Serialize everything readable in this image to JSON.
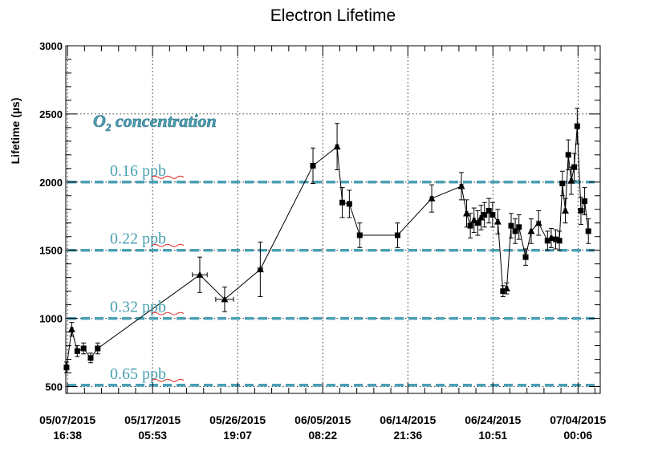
{
  "chart_data": {
    "type": "scatter",
    "title": "Electron Lifetime",
    "ylabel": "Lifetime (µs)",
    "xlabel": "",
    "ylim": [
      450,
      3000
    ],
    "xlim": [
      "05/07/2015 12:00",
      "07/06/2015 12:00"
    ],
    "x_axis": "time",
    "grid": true,
    "yticks": [
      500,
      1000,
      1500,
      2000,
      2500,
      3000
    ],
    "ytick_labels": [
      "500",
      "1000",
      "1500",
      "2000",
      "2500",
      "3000"
    ],
    "xticks": [
      {
        "t": "2015-05-07 16:38",
        "line1": "05/07/2015",
        "line2": "16:38"
      },
      {
        "t": "2015-05-17 05:53",
        "line1": "05/17/2015",
        "line2": "05:53"
      },
      {
        "t": "2015-05-26 19:07",
        "line1": "05/26/2015",
        "line2": "19:07"
      },
      {
        "t": "2015-06-05 08:22",
        "line1": "06/05/2015",
        "line2": "08:22"
      },
      {
        "t": "2015-06-14 21:36",
        "line1": "06/14/2015",
        "line2": "21:36"
      },
      {
        "t": "2015-06-24 10:51",
        "line1": "06/24/2015",
        "line2": "10:51"
      },
      {
        "t": "2015-07-04 00:06",
        "line1": "07/04/2015",
        "line2": "00:06"
      }
    ],
    "annotation": {
      "base": "O",
      "subscript": "2",
      "text": " concentration"
    },
    "reference_lines": [
      {
        "y": 2000,
        "label": "0.16 ppb"
      },
      {
        "y": 1500,
        "label": "0.22 ppb"
      },
      {
        "y": 1000,
        "label": "0.32 ppb"
      },
      {
        "y": 510,
        "label": "0.65 ppb"
      }
    ],
    "series": [
      {
        "points": [
          {
            "t": "2015-05-07 14:00",
            "y": 640,
            "yerr": 40,
            "xerr_h": 3,
            "m": "s"
          },
          {
            "t": "2015-05-08 04:00",
            "y": 920,
            "yerr": 50,
            "xerr_h": 3,
            "m": "t"
          },
          {
            "t": "2015-05-08 19:00",
            "y": 760,
            "yerr": 40,
            "xerr_h": 3,
            "m": "s"
          },
          {
            "t": "2015-05-09 12:00",
            "y": 780,
            "yerr": 40,
            "xerr_h": 3,
            "m": "s"
          },
          {
            "t": "2015-05-10 07:00",
            "y": 710,
            "yerr": 35,
            "xerr_h": 3,
            "m": "s"
          },
          {
            "t": "2015-05-11 02:00",
            "y": 780,
            "yerr": 40,
            "xerr_h": 3,
            "m": "s"
          },
          {
            "t": "2015-05-22 13:00",
            "y": 1320,
            "yerr": 130,
            "xerr_h": 20,
            "m": "t"
          },
          {
            "t": "2015-05-25 08:00",
            "y": 1140,
            "yerr": 90,
            "xerr_h": 24,
            "m": "t"
          },
          {
            "t": "2015-05-29 08:00",
            "y": 1360,
            "yerr": 200,
            "xerr_h": 6,
            "m": "t"
          },
          {
            "t": "2015-06-04 06:00",
            "y": 2120,
            "yerr": 130,
            "xerr_h": 6,
            "m": "s"
          },
          {
            "t": "2015-06-06 23:00",
            "y": 2260,
            "yerr": 170,
            "xerr_h": 4,
            "m": "t"
          },
          {
            "t": "2015-06-07 13:00",
            "y": 1850,
            "yerr": 110,
            "xerr_h": 4,
            "m": "s"
          },
          {
            "t": "2015-06-08 08:00",
            "y": 1840,
            "yerr": 100,
            "xerr_h": 4,
            "m": "s"
          },
          {
            "t": "2015-06-09 12:00",
            "y": 1610,
            "yerr": 90,
            "xerr_h": 4,
            "m": "s"
          },
          {
            "t": "2015-06-13 18:00",
            "y": 1610,
            "yerr": 90,
            "xerr_h": 4,
            "m": "s"
          },
          {
            "t": "2015-06-17 14:00",
            "y": 1880,
            "yerr": 100,
            "xerr_h": 4,
            "m": "t"
          },
          {
            "t": "2015-06-20 22:00",
            "y": 1970,
            "yerr": 100,
            "xerr_h": 4,
            "m": "t"
          },
          {
            "t": "2015-06-21 12:00",
            "y": 1770,
            "yerr": 100,
            "xerr_h": 3,
            "m": "t"
          },
          {
            "t": "2015-06-21 22:00",
            "y": 1680,
            "yerr": 90,
            "xerr_h": 3,
            "m": "s"
          },
          {
            "t": "2015-06-22 08:00",
            "y": 1720,
            "yerr": 90,
            "xerr_h": 3,
            "m": "t"
          },
          {
            "t": "2015-06-22 18:00",
            "y": 1700,
            "yerr": 90,
            "xerr_h": 3,
            "m": "s"
          },
          {
            "t": "2015-06-23 03:00",
            "y": 1740,
            "yerr": 90,
            "xerr_h": 3,
            "m": "t"
          },
          {
            "t": "2015-06-23 12:00",
            "y": 1760,
            "yerr": 90,
            "xerr_h": 3,
            "m": "s"
          },
          {
            "t": "2015-06-24 00:00",
            "y": 1790,
            "yerr": 90,
            "xerr_h": 3,
            "m": "s"
          },
          {
            "t": "2015-06-24 10:00",
            "y": 1760,
            "yerr": 90,
            "xerr_h": 3,
            "m": "s"
          },
          {
            "t": "2015-06-25 00:00",
            "y": 1710,
            "yerr": 90,
            "xerr_h": 3,
            "m": "t"
          },
          {
            "t": "2015-06-25 14:00",
            "y": 1200,
            "yerr": 40,
            "xerr_h": 3,
            "m": "s"
          },
          {
            "t": "2015-06-26 00:00",
            "y": 1220,
            "yerr": 40,
            "xerr_h": 3,
            "m": "t"
          },
          {
            "t": "2015-06-26 12:00",
            "y": 1680,
            "yerr": 90,
            "xerr_h": 3,
            "m": "s"
          },
          {
            "t": "2015-06-26 23:00",
            "y": 1640,
            "yerr": 90,
            "xerr_h": 3,
            "m": "s"
          },
          {
            "t": "2015-06-27 09:00",
            "y": 1670,
            "yerr": 90,
            "xerr_h": 3,
            "m": "s"
          },
          {
            "t": "2015-06-28 03:00",
            "y": 1450,
            "yerr": 60,
            "xerr_h": 3,
            "m": "s"
          },
          {
            "t": "2015-06-28 18:00",
            "y": 1640,
            "yerr": 90,
            "xerr_h": 3,
            "m": "t"
          },
          {
            "t": "2015-06-29 14:00",
            "y": 1700,
            "yerr": 90,
            "xerr_h": 5,
            "m": "t"
          },
          {
            "t": "2015-06-30 14:00",
            "y": 1570,
            "yerr": 70,
            "xerr_h": 3,
            "m": "s"
          },
          {
            "t": "2015-07-01 00:00",
            "y": 1590,
            "yerr": 70,
            "xerr_h": 3,
            "m": "t"
          },
          {
            "t": "2015-07-01 12:00",
            "y": 1580,
            "yerr": 70,
            "xerr_h": 3,
            "m": "s"
          },
          {
            "t": "2015-07-01 22:00",
            "y": 1570,
            "yerr": 70,
            "xerr_h": 3,
            "m": "s"
          },
          {
            "t": "2015-07-02 06:00",
            "y": 1990,
            "yerr": 90,
            "xerr_h": 3,
            "m": "s"
          },
          {
            "t": "2015-07-02 14:00",
            "y": 1790,
            "yerr": 90,
            "xerr_h": 3,
            "m": "t"
          },
          {
            "t": "2015-07-02 22:00",
            "y": 2200,
            "yerr": 110,
            "xerr_h": 3,
            "m": "s"
          },
          {
            "t": "2015-07-03 06:00",
            "y": 2010,
            "yerr": 100,
            "xerr_h": 3,
            "m": "t"
          },
          {
            "t": "2015-07-03 14:00",
            "y": 2110,
            "yerr": 100,
            "xerr_h": 3,
            "m": "s"
          },
          {
            "t": "2015-07-03 22:00",
            "y": 2410,
            "yerr": 130,
            "xerr_h": 3,
            "m": "s"
          },
          {
            "t": "2015-07-04 08:00",
            "y": 1790,
            "yerr": 100,
            "xerr_h": 3,
            "m": "s"
          },
          {
            "t": "2015-07-04 18:00",
            "y": 1860,
            "yerr": 100,
            "xerr_h": 3,
            "m": "s"
          },
          {
            "t": "2015-07-05 04:00",
            "y": 1640,
            "yerr": 90,
            "xerr_h": 3,
            "m": "s"
          }
        ]
      }
    ],
    "colors": {
      "reference_line": "#4aa0b4",
      "reference_text": "#4aa0b4",
      "squiggle": "#e03030",
      "data": "#000000",
      "grid": "#000000"
    }
  }
}
